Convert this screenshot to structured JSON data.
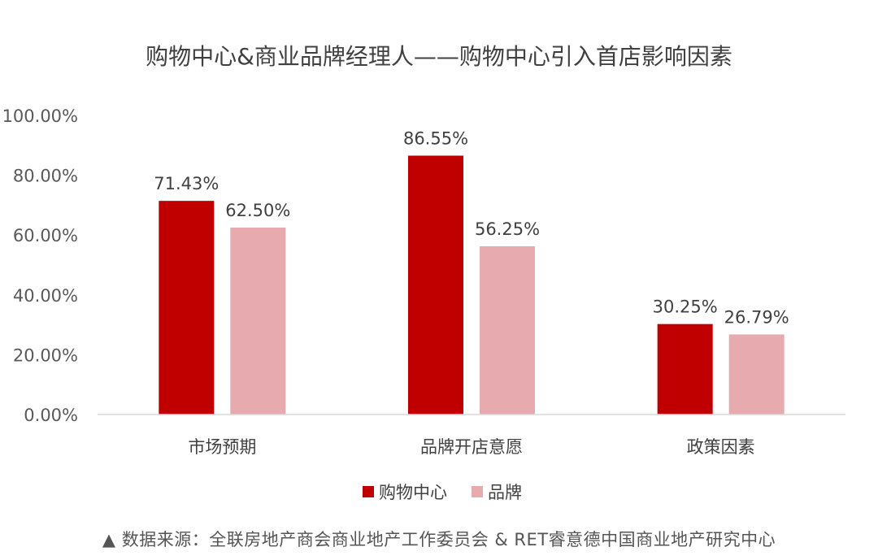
{
  "chart_data": {
    "type": "bar",
    "title": "购物中心&商业品牌经理人——购物中心引入首店影响因素",
    "categories": [
      "市场预期",
      "品牌开店意愿",
      "政策因素"
    ],
    "series": [
      {
        "name": "购物中心",
        "values": [
          71.43,
          86.55,
          30.25
        ],
        "color": "#C00000"
      },
      {
        "name": "品牌",
        "values": [
          62.5,
          56.25,
          26.79
        ],
        "color": "#E7ABAF"
      }
    ],
    "data_labels": [
      [
        "71.43%",
        "86.55%",
        "30.25%"
      ],
      [
        "62.50%",
        "56.25%",
        "26.79%"
      ]
    ],
    "y_ticks": [
      0,
      20,
      40,
      60,
      80,
      100
    ],
    "y_tick_labels": [
      "0.00%",
      "20.00%",
      "40.00%",
      "60.00%",
      "80.00%",
      "100.00%"
    ],
    "ylim": [
      0,
      100
    ],
    "grid": false,
    "legend_position": "bottom"
  },
  "source_text": "▲ 数据来源：全联房地产商会商业地产工作委员会 & RET睿意德中国商业地产研究中心"
}
